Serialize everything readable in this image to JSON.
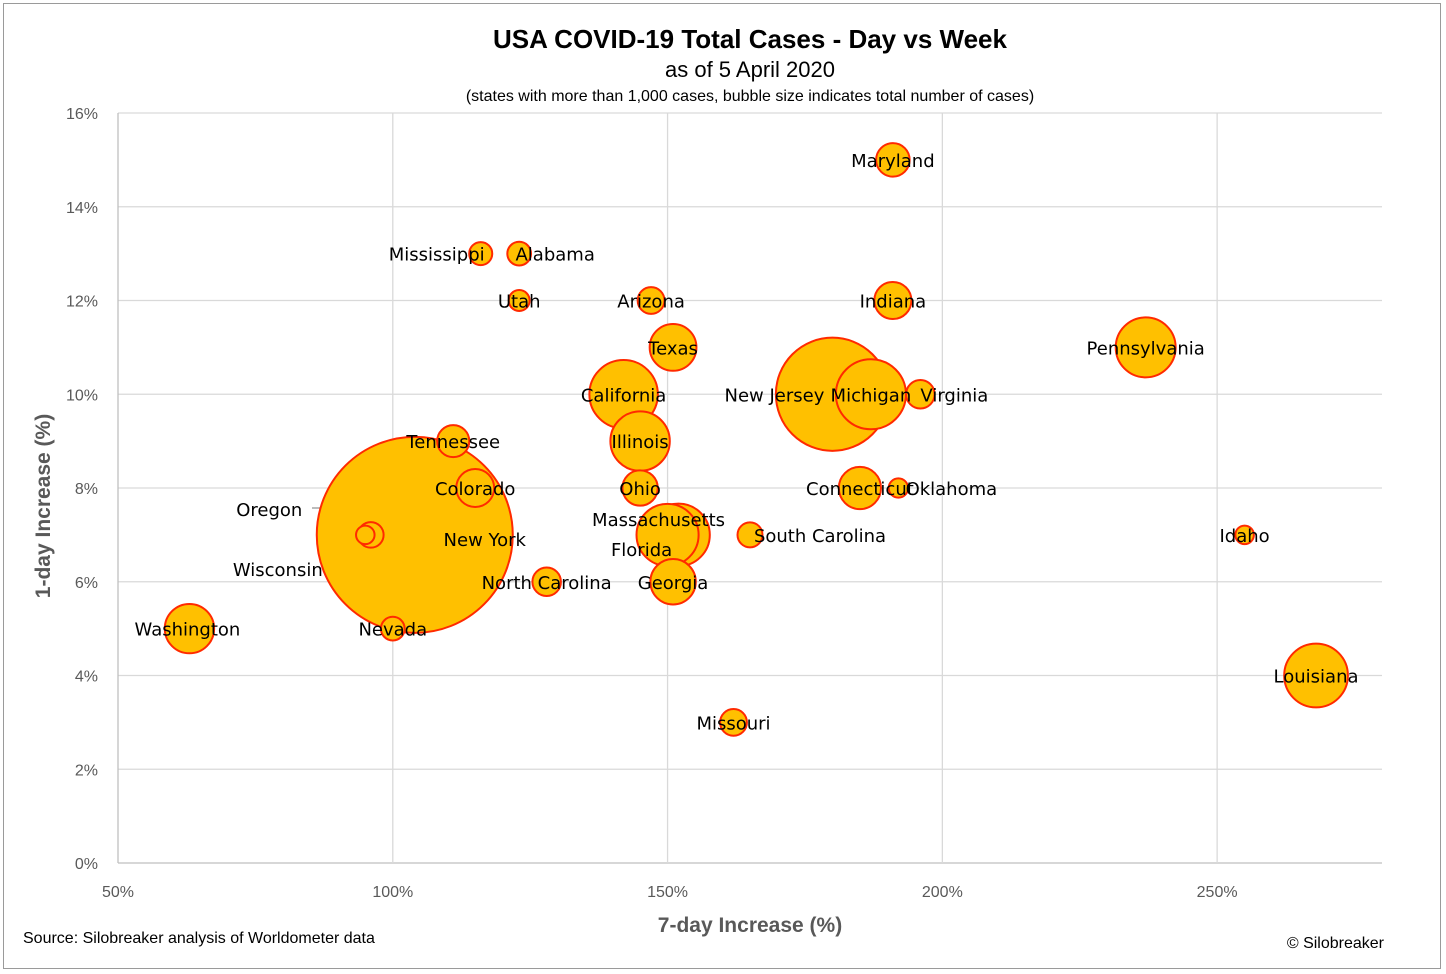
{
  "chart_data": {
    "type": "bubble",
    "title": "USA COVID-19 Total Cases - Day vs Week",
    "subtitle": "as of 5 April 2020",
    "note": "(states with more than 1,000 cases, bubble size indicates total number of cases)",
    "xlabel": "7-day Increase (%)",
    "ylabel": "1-day Increase (%)",
    "xlim": [
      50,
      280
    ],
    "ylim": [
      0,
      16
    ],
    "xticks": [
      50,
      100,
      150,
      200,
      250
    ],
    "xtick_labels": [
      "50%",
      "100%",
      "150%",
      "200%",
      "250%"
    ],
    "yticks": [
      0,
      2,
      4,
      6,
      8,
      10,
      12,
      14,
      16
    ],
    "ytick_labels": [
      "0%",
      "2%",
      "4%",
      "6%",
      "8%",
      "10%",
      "12%",
      "14%",
      "16%"
    ],
    "grid": true,
    "legend": "none",
    "colors": {
      "bubble_fill": "#ffc000",
      "bubble_edge": "#ff2a00"
    },
    "points": [
      {
        "label": "Maryland",
        "x": 191,
        "y": 15,
        "size": 3600
      },
      {
        "label": "Mississippi",
        "x": 116,
        "y": 13,
        "size": 1700
      },
      {
        "label": "Alabama",
        "x": 123,
        "y": 13,
        "size": 1800
      },
      {
        "label": "Utah",
        "x": 123,
        "y": 12,
        "size": 1400
      },
      {
        "label": "Arizona",
        "x": 147,
        "y": 12,
        "size": 2300
      },
      {
        "label": "Indiana",
        "x": 191,
        "y": 12,
        "size": 4400
      },
      {
        "label": "Texas",
        "x": 151,
        "y": 11,
        "size": 7000
      },
      {
        "label": "Pennsylvania",
        "x": 237,
        "y": 11,
        "size": 11500
      },
      {
        "label": "California",
        "x": 142,
        "y": 10,
        "size": 15000
      },
      {
        "label": "New Jersey",
        "x": 180,
        "y": 10,
        "size": 41000
      },
      {
        "label": "Michigan",
        "x": 187,
        "y": 10,
        "size": 15700
      },
      {
        "label": "Virginia",
        "x": 196,
        "y": 10,
        "size": 2600
      },
      {
        "label": "Tennessee",
        "x": 111,
        "y": 9,
        "size": 3300
      },
      {
        "label": "Illinois",
        "x": 145,
        "y": 9,
        "size": 11300
      },
      {
        "label": "Colorado",
        "x": 115,
        "y": 8,
        "size": 4600
      },
      {
        "label": "Ohio",
        "x": 145,
        "y": 8,
        "size": 4000
      },
      {
        "label": "Connecticut",
        "x": 185,
        "y": 8,
        "size": 5700
      },
      {
        "label": "Oklahoma",
        "x": 192,
        "y": 8,
        "size": 1200
      },
      {
        "label": "Oregon",
        "x": 95,
        "y": 7,
        "size": 1100
      },
      {
        "label": "Wisconsin",
        "x": 96,
        "y": 7,
        "size": 2100
      },
      {
        "label": "New York",
        "x": 104,
        "y": 7,
        "size": 123000
      },
      {
        "label": "Massachusetts",
        "x": 152,
        "y": 7,
        "size": 12500
      },
      {
        "label": "Florida",
        "x": 150,
        "y": 7,
        "size": 12350
      },
      {
        "label": "South Carolina",
        "x": 165,
        "y": 7,
        "size": 2000
      },
      {
        "label": "Idaho",
        "x": 255,
        "y": 7,
        "size": 1100
      },
      {
        "label": "North Carolina",
        "x": 128,
        "y": 6,
        "size": 2600
      },
      {
        "label": "Georgia",
        "x": 151,
        "y": 6,
        "size": 6600
      },
      {
        "label": "Washington",
        "x": 63,
        "y": 5,
        "size": 7800
      },
      {
        "label": "Nevada",
        "x": 100,
        "y": 5,
        "size": 1800
      },
      {
        "label": "Louisiana",
        "x": 268,
        "y": 4,
        "size": 13000
      },
      {
        "label": "Missouri",
        "x": 162,
        "y": 3,
        "size": 2300
      }
    ]
  },
  "footer": {
    "source": "Source: Silobreaker analysis of Worldometer data",
    "credit": "© Silobreaker"
  }
}
